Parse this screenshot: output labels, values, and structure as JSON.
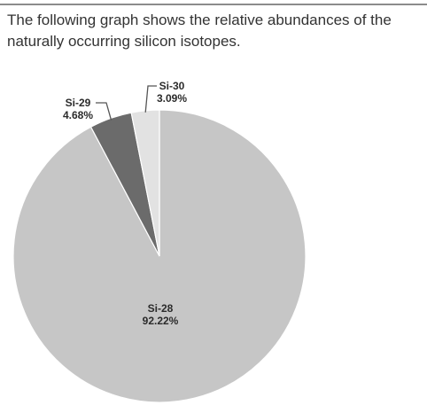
{
  "intro_text": "The following graph shows the relative abundances of the naturally occurring silicon isotopes.",
  "chart_data": {
    "type": "pie",
    "title": "",
    "slices": [
      {
        "label": "Si-28",
        "value": 92.22,
        "value_label": "92.22%",
        "color": "#c6c6c6"
      },
      {
        "label": "Si-29",
        "value": 4.68,
        "value_label": "4.68%",
        "color": "#6b6b6b"
      },
      {
        "label": "Si-30",
        "value": 3.09,
        "value_label": "3.09%",
        "color": "#e2e2e2"
      }
    ],
    "start": "12 o'clock",
    "direction": "clockwise",
    "legend": "none",
    "labels": "inline with leader lines for small slices"
  }
}
